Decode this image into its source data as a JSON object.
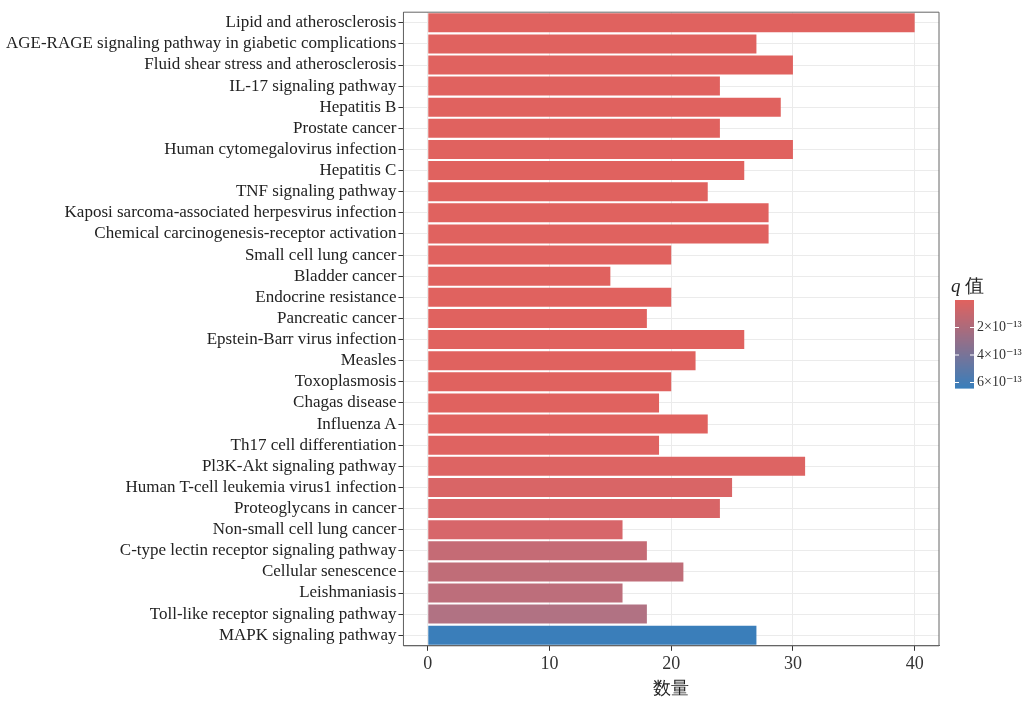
{
  "chart_data": {
    "type": "bar",
    "orientation": "horizontal",
    "categories": [
      "Lipid and atherosclerosis",
      "AGE-RAGE signaling pathway in giabetic complications",
      "Fluid shear stress and atherosclerosis",
      "IL-17 signaling pathway",
      "Hepatitis B",
      "Prostate cancer",
      "Human cytomegalovirus infection",
      "Hepatitis C",
      "TNF signaling pathway",
      "Kaposi sarcoma-associated herpesvirus infection",
      "Chemical carcinogenesis-receptor activation",
      "Small cell lung cancer",
      "Bladder cancer",
      "Endocrine resistance",
      "Pancreatic cancer",
      "Epstein-Barr virus infection",
      "Measles",
      "Toxoplasmosis",
      "Chagas disease",
      "Influenza A",
      "Th17 cell differentiation",
      "Pl3K-Akt signaling pathway",
      "Human T-cell leukemia virus1 infection",
      "Proteoglycans in cancer",
      "Non-small cell lung cancer",
      "C-type lectin receptor signaling pathway",
      "Cellular senescence",
      "Leishmaniasis",
      "Toll-like receptor signaling pathway",
      "MAPK signaling pathway"
    ],
    "values": [
      40,
      27,
      30,
      24,
      29,
      24,
      30,
      26,
      23,
      28,
      28,
      20,
      15,
      20,
      18,
      26,
      22,
      20,
      19,
      23,
      19,
      31,
      25,
      24,
      16,
      18,
      21,
      16,
      18,
      27
    ],
    "colors": [
      "#e0625f",
      "#e0625f",
      "#e0625f",
      "#e0625f",
      "#e0625f",
      "#e0625f",
      "#e0625f",
      "#e0625f",
      "#e0625f",
      "#e0625f",
      "#e0625f",
      "#e0625f",
      "#e0625f",
      "#e0625f",
      "#e0625f",
      "#e0625f",
      "#e0625f",
      "#e0625f",
      "#e0625f",
      "#e0625f",
      "#df6361",
      "#dd6463",
      "#d96566",
      "#d86567",
      "#d7666a",
      "#c56b75",
      "#c06d78",
      "#bd6e7b",
      "#b17283",
      "#3a7eba"
    ],
    "xlabel": "数量",
    "clabel": "q 值",
    "xlim": [
      -2,
      42
    ],
    "xticks": [
      0,
      10,
      20,
      30,
      40
    ],
    "clim": [
      0,
      6.4e-13
    ],
    "cticks": [
      {
        "value": 2e-13,
        "label": "2×10⁻¹³"
      },
      {
        "value": 4e-13,
        "label": "4×10⁻¹³"
      },
      {
        "value": 6e-13,
        "label": "6×10⁻¹³"
      }
    ],
    "grid": true
  }
}
